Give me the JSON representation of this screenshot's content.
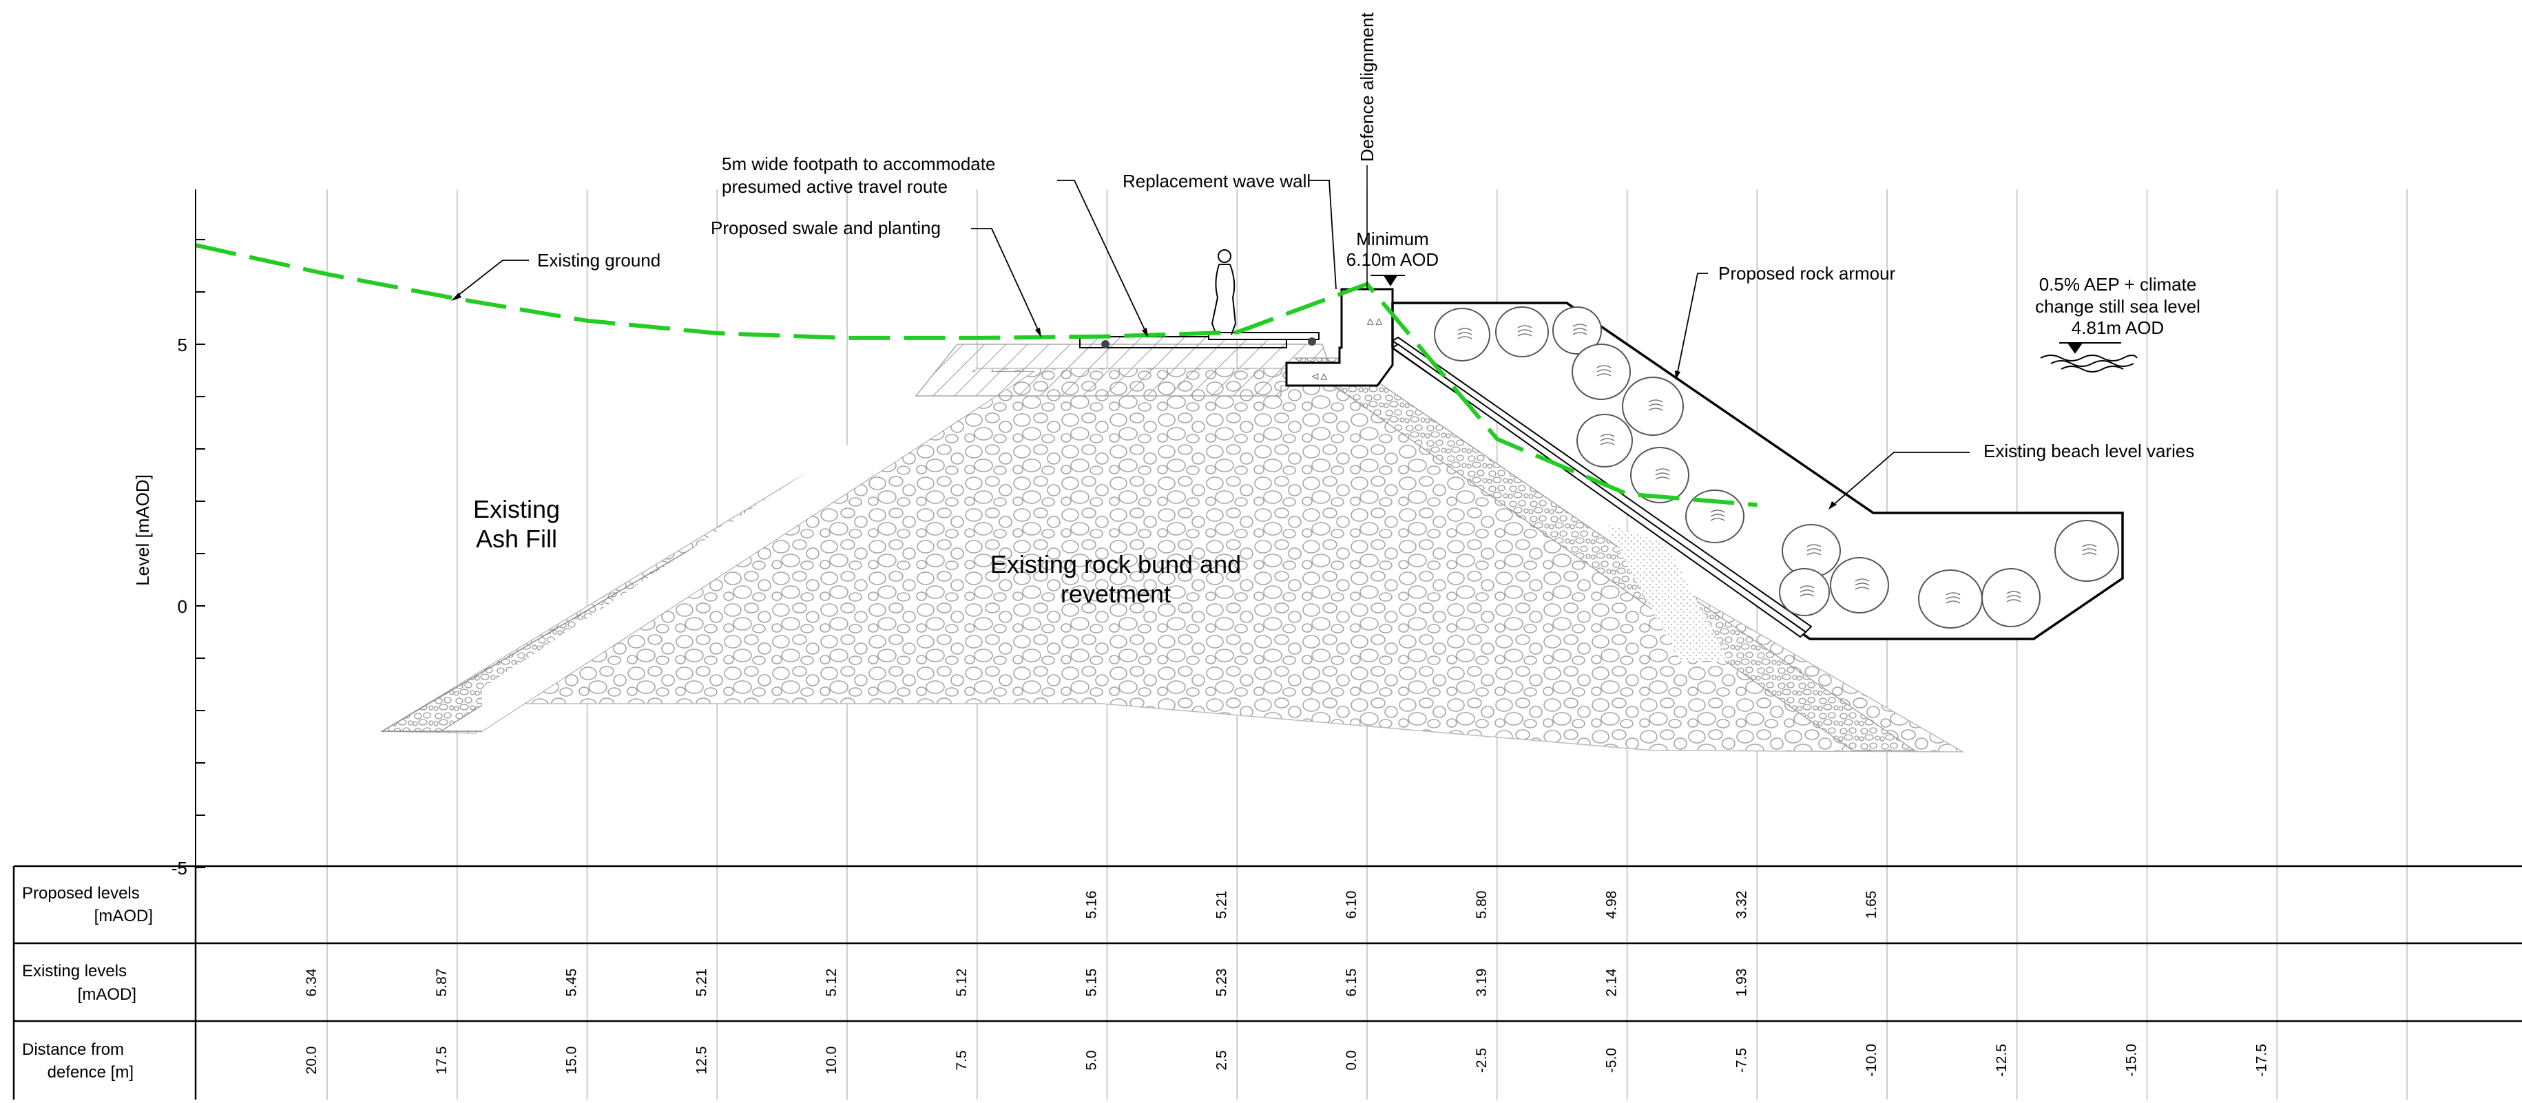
{
  "axis": {
    "ylabel": "Level [mAOD]",
    "ticks": [
      {
        "value": 5,
        "label": "5"
      },
      {
        "value": 0,
        "label": "0"
      },
      {
        "value": -5,
        "label": "-5"
      }
    ]
  },
  "labels": {
    "defence_alignment": "Defence alignment",
    "footpath_1": "5m wide footpath to accommodate",
    "footpath_2": "presumed active travel route",
    "wave_wall": "Replacement wave wall",
    "swale": "Proposed swale and planting",
    "existing_ground": "Existing ground",
    "minimum_1": "Minimum",
    "minimum_2": "6.10m AOD",
    "rock_armour": "Proposed rock armour",
    "sea_level_1": "0.5% AEP + climate",
    "sea_level_2": "change still sea level",
    "sea_level_3": "4.81m AOD",
    "beach_level": "Existing beach level varies",
    "ash_fill_1": "Existing",
    "ash_fill_2": "Ash Fill",
    "rock_bund_1": "Existing rock bund and",
    "rock_bund_2": "revetment"
  },
  "table": {
    "rows": [
      {
        "title_1": "Proposed levels",
        "title_2": "[mAOD]",
        "values": [
          "",
          "",
          "",
          "",
          "",
          "",
          "5.16",
          "5.21",
          "6.10",
          "5.80",
          "4.98",
          "3.32",
          "1.65",
          "",
          "",
          "",
          ""
        ]
      },
      {
        "title_1": "Existing levels",
        "title_2": "[mAOD]",
        "values": [
          "6.34",
          "5.87",
          "5.45",
          "5.21",
          "5.12",
          "5.12",
          "5.15",
          "5.23",
          "6.15",
          "3.19",
          "2.14",
          "1.93",
          "",
          "",
          "",
          "",
          ""
        ]
      },
      {
        "title_1": "Distance from",
        "title_2": "defence [m]",
        "values": [
          "20.0",
          "17.5",
          "15.0",
          "12.5",
          "10.0",
          "7.5",
          "5.0",
          "2.5",
          "0.0",
          "-2.5",
          "-5.0",
          "-7.5",
          "-10.0",
          "-12.5",
          "-15.0",
          "-17.5",
          ""
        ]
      }
    ]
  },
  "chart_data": {
    "type": "line",
    "ylabel": "Level [mAOD]",
    "ylim": [
      -5,
      7.5
    ],
    "series": [
      {
        "name": "Existing ground",
        "x": [
          20.0,
          17.5,
          15.0,
          12.5,
          10.0,
          7.5,
          5.0,
          2.5,
          0.0,
          -2.5,
          -5.0,
          -7.5
        ],
        "values": [
          6.34,
          5.87,
          5.45,
          5.21,
          5.12,
          5.12,
          5.15,
          5.23,
          6.15,
          3.19,
          2.14,
          1.93
        ]
      }
    ],
    "colors": {
      "existing_ground": "#22cc22"
    }
  }
}
